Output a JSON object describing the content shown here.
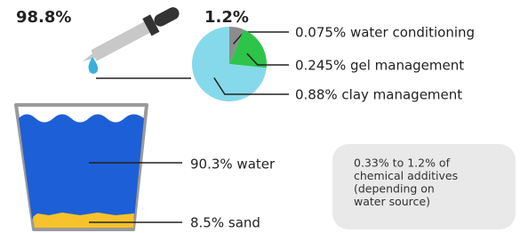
{
  "header": {
    "water_share": "98.8%",
    "additive_share": "1.2%"
  },
  "pie": {
    "slices": [
      {
        "value": 0.075,
        "label": "0.075% water conditioning",
        "color": "#8c8c8c"
      },
      {
        "value": 0.245,
        "label": "0.245% gel management",
        "color": "#2ec44a"
      },
      {
        "value": 0.88,
        "label": "0.88% clay management",
        "color": "#86d9ea"
      }
    ]
  },
  "glass": {
    "water_label": "90.3% water",
    "sand_label": "8.5% sand"
  },
  "note": {
    "lines": [
      "0.33% to 1.2% of",
      "chemical additives",
      "(depending on",
      "water source)"
    ]
  }
}
